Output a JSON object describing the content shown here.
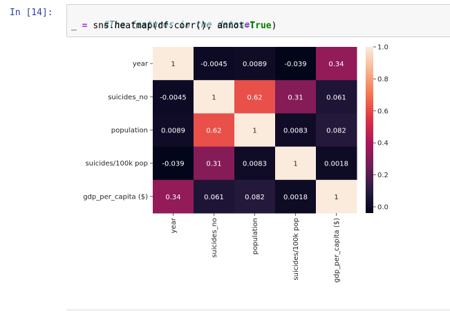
{
  "cell": {
    "prompt": "In [14]:",
    "code": {
      "comment": "#The features in the dataset",
      "line2": {
        "var": "_",
        "eq": "=",
        "call": "sns.heatmap(df.corr(), annot",
        "eq2": "=",
        "kw": "True",
        "close": ")"
      }
    }
  },
  "chart_data": {
    "type": "heatmap",
    "title": "",
    "xlabel": "",
    "ylabel": "",
    "rows": [
      "year",
      "suicides_no",
      "population",
      "suicides/100k pop",
      "gdp_per_capita ($)"
    ],
    "columns": [
      "year",
      "suicides_no",
      "population",
      "suicides/100k pop",
      "gdp_per_capita ($)"
    ],
    "values": [
      [
        1,
        -0.0045,
        0.0089,
        -0.039,
        0.34
      ],
      [
        -0.0045,
        1,
        0.62,
        0.31,
        0.061
      ],
      [
        0.0089,
        0.62,
        1,
        0.0083,
        0.082
      ],
      [
        -0.039,
        0.31,
        0.0083,
        1,
        0.0018
      ],
      [
        0.34,
        0.061,
        0.082,
        0.0018,
        1
      ]
    ],
    "annotations": [
      [
        "1",
        "-0.0045",
        "0.0089",
        "-0.039",
        "0.34"
      ],
      [
        "-0.0045",
        "1",
        "0.62",
        "0.31",
        "0.061"
      ],
      [
        "0.0089",
        "0.62",
        "1",
        "0.0083",
        "0.082"
      ],
      [
        "-0.039",
        "0.31",
        "0.0083",
        "1",
        "0.0018"
      ],
      [
        "0.34",
        "0.061",
        "0.082",
        "0.0018",
        "1"
      ]
    ],
    "colorbar": {
      "range": [
        -0.039,
        1
      ],
      "ticks": [
        0.0,
        0.2,
        0.4,
        0.6,
        0.8,
        1.0
      ],
      "tick_labels": [
        "0.0",
        "0.2",
        "0.4",
        "0.6",
        "0.8",
        "1.0"
      ]
    },
    "colormap_stops": [
      "#03051a",
      "#2b1c43",
      "#701f57",
      "#ad1759",
      "#e13342",
      "#f37651",
      "#f6b48f",
      "#faebdd"
    ]
  }
}
